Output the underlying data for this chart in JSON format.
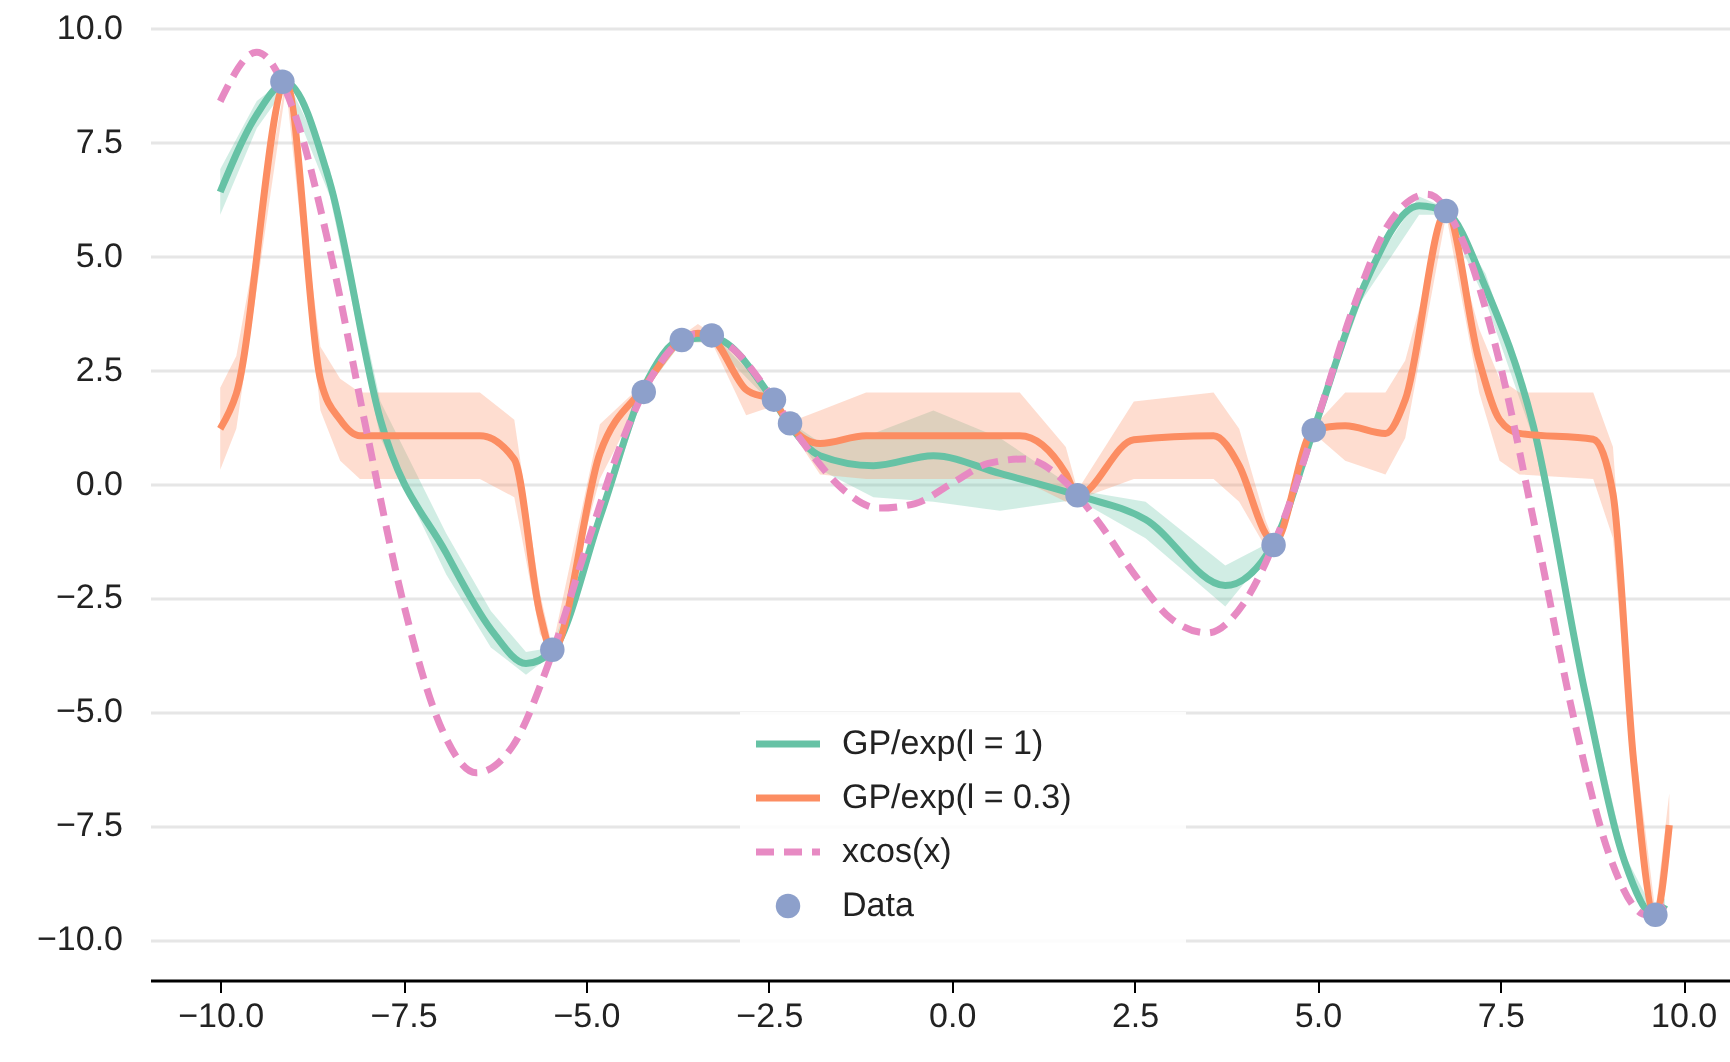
{
  "chart_data": {
    "type": "line",
    "xlim": [
      -10.96,
      10.64
    ],
    "ylim": [
      -10.9,
      10
    ],
    "xticks": [
      {
        "value": -10,
        "label": "−10.0"
      },
      {
        "value": -7.5,
        "label": "−7.5"
      },
      {
        "value": -5,
        "label": "−5.0"
      },
      {
        "value": -2.5,
        "label": "−2.5"
      },
      {
        "value": 0,
        "label": "0.0"
      },
      {
        "value": 2.5,
        "label": "2.5"
      },
      {
        "value": 5,
        "label": "5.0"
      },
      {
        "value": 7.5,
        "label": "7.5"
      },
      {
        "value": 10,
        "label": "10.0"
      }
    ],
    "yticks": [
      {
        "value": -10,
        "label": "−10.0"
      },
      {
        "value": -7.5,
        "label": "−7.5"
      },
      {
        "value": -5,
        "label": "−5.0"
      },
      {
        "value": -2.5,
        "label": "−2.5"
      },
      {
        "value": 0,
        "label": "0.0"
      },
      {
        "value": 2.5,
        "label": "2.5"
      },
      {
        "value": 5,
        "label": "5.0"
      },
      {
        "value": 7.5,
        "label": "7.5"
      },
      {
        "value": 10,
        "label": "10.0"
      }
    ],
    "grid": "y",
    "legend": "bottom",
    "series": [
      {
        "name": "GP/exp(l = 1)",
        "color": "#66c2a5",
        "x": [
          -10,
          -9.5,
          -9.1,
          -8.5,
          -7.81,
          -6.91,
          -6.3,
          -5.82,
          -5.46,
          -4.8,
          -4.21,
          -3.69,
          -3.28,
          -2.43,
          -2.21,
          -1.8,
          -1.07,
          -0.25,
          0.66,
          1.72,
          2.65,
          3.74,
          4.4,
          4.95,
          5.6,
          6.39,
          6.76,
          7.3,
          7.95,
          8.66,
          9.2,
          9.62,
          9.75
        ],
        "values": [
          6.4,
          8.1,
          8.8,
          6.6,
          1.4,
          -1.53,
          -3.2,
          -3.95,
          -3.68,
          -0.7,
          2.1,
          3.16,
          3.2,
          1.8,
          1.27,
          0.61,
          0.39,
          0.61,
          0.22,
          -0.26,
          -0.79,
          -2.24,
          -1.32,
          1.18,
          4.2,
          6.1,
          5.96,
          4.3,
          1.27,
          -4.6,
          -8.3,
          -9.5,
          -9.25
        ],
        "lower": [
          5.9,
          7.8,
          8.7,
          6.3,
          1.0,
          -2.0,
          -3.6,
          -4.2,
          -3.75,
          -0.9,
          2.0,
          3.1,
          3.1,
          1.7,
          1.2,
          0.3,
          -0.3,
          -0.4,
          -0.6,
          -0.35,
          -1.2,
          -2.7,
          -1.4,
          1.1,
          4.0,
          5.9,
          5.9,
          4.0,
          1.0,
          -4.8,
          -8.45,
          -9.55,
          -9.4
        ],
        "upper": [
          6.9,
          8.4,
          8.9,
          6.9,
          1.8,
          -1.1,
          -2.8,
          -3.7,
          -3.6,
          -0.5,
          2.2,
          3.25,
          3.3,
          1.9,
          1.35,
          0.9,
          1.1,
          1.6,
          1.0,
          -0.15,
          -0.4,
          -1.8,
          -1.25,
          1.25,
          4.4,
          6.3,
          6.05,
          4.6,
          1.5,
          -4.4,
          -8.15,
          -9.45,
          -9.1
        ]
      },
      {
        "name": "GP/exp(l = 0.3)",
        "color": "#fc8d62",
        "x": [
          -10,
          -9.78,
          -9.1,
          -8.63,
          -8.36,
          -8.09,
          -7.0,
          -6.45,
          -5.98,
          -5.63,
          -5.46,
          -4.81,
          -4.21,
          -3.69,
          -3.47,
          -3.28,
          -2.81,
          -2.43,
          -2.21,
          -1.8,
          -1.17,
          0.93,
          1.56,
          1.72,
          2.49,
          3.58,
          3.93,
          4.29,
          4.4,
          4.95,
          5.38,
          5.93,
          6.2,
          6.76,
          7.21,
          7.49,
          7.76,
          8.77,
          9.04,
          9.32,
          9.62,
          9.81
        ],
        "values": [
          1.2,
          1.97,
          8.8,
          2.28,
          1.4,
          1.05,
          1.05,
          1.05,
          0.53,
          -2.85,
          -3.68,
          0.66,
          2.1,
          3.16,
          3.3,
          3.2,
          2.06,
          1.8,
          1.27,
          0.88,
          1.05,
          1.05,
          0.22,
          -0.26,
          0.96,
          1.05,
          0.39,
          -1.1,
          -1.32,
          1.18,
          1.27,
          1.1,
          1.84,
          5.96,
          2.7,
          1.4,
          1.1,
          0.97,
          -0.22,
          -6.05,
          -9.5,
          -7.5
        ],
        "lower": [
          0.3,
          1.2,
          8.7,
          1.6,
          0.5,
          0.1,
          0.1,
          0.1,
          -0.3,
          -3.3,
          -3.75,
          0.1,
          2.0,
          3.1,
          3.1,
          3.1,
          1.5,
          1.7,
          1.2,
          0.2,
          0.1,
          0.1,
          -0.4,
          -0.35,
          0.1,
          0.1,
          -0.4,
          -1.4,
          -1.4,
          1.1,
          0.5,
          0.2,
          1.0,
          5.9,
          2.0,
          0.5,
          0.2,
          0.1,
          -1.2,
          -6.6,
          -9.6,
          -8.2
        ],
        "upper": [
          2.1,
          2.8,
          8.9,
          3.0,
          2.3,
          2.0,
          2.0,
          2.0,
          1.4,
          -2.4,
          -3.6,
          1.3,
          2.2,
          3.25,
          3.5,
          3.3,
          2.6,
          1.9,
          1.35,
          1.6,
          2.0,
          2.0,
          0.8,
          -0.15,
          1.8,
          2.0,
          1.2,
          -0.8,
          -1.25,
          1.25,
          2.0,
          2.0,
          2.7,
          6.05,
          3.4,
          2.3,
          2.0,
          2.0,
          0.8,
          -5.5,
          -9.4,
          -6.8
        ]
      },
      {
        "name": "xcos(x)",
        "color": "#e78ac3",
        "line_style": "dashed",
        "x": [
          -10,
          -9.5,
          -9,
          -8.5,
          -8,
          -7.5,
          -7,
          -6.5,
          -6,
          -5.5,
          -5,
          -4.5,
          -4,
          -3.5,
          -3,
          -2.5,
          -2,
          -1.5,
          -1,
          -0.5,
          0,
          0.5,
          1,
          1.5,
          2,
          2.5,
          3,
          3.5,
          4,
          4.5,
          5,
          5.5,
          6,
          6.5,
          7,
          7.5,
          8,
          8.5,
          9,
          9.5,
          9.75
        ],
        "values": [
          8.39,
          9.47,
          8.2,
          5.12,
          1.16,
          -2.6,
          -5.28,
          -6.35,
          -5.76,
          -3.9,
          -1.42,
          0.95,
          2.61,
          3.28,
          2.97,
          2.0,
          0.83,
          -0.11,
          -0.54,
          -0.44,
          0,
          0.44,
          0.54,
          0.11,
          -0.83,
          -2.0,
          -2.97,
          -3.28,
          -2.61,
          -0.95,
          1.42,
          3.9,
          5.76,
          6.35,
          5.28,
          2.6,
          -1.16,
          -5.12,
          -8.2,
          -9.47,
          -9.28
        ]
      },
      {
        "name": "Data",
        "color": "#8da0cb",
        "type": "scatter",
        "marker": "circle",
        "x": [
          -9.15,
          -5.46,
          -4.21,
          -3.69,
          -3.28,
          -2.43,
          -2.21,
          1.72,
          4.4,
          4.95,
          6.76,
          9.62
        ],
        "values": [
          8.82,
          -3.65,
          2.01,
          3.15,
          3.25,
          1.84,
          1.32,
          -0.26,
          -1.35,
          1.17,
          5.98,
          -9.47
        ]
      }
    ]
  }
}
